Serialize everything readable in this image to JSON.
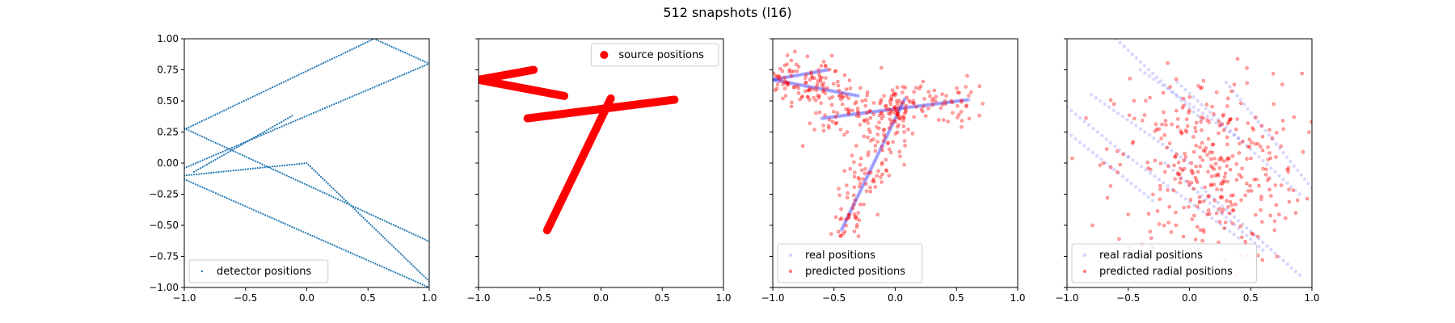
{
  "figure": {
    "title": "512 snapshots (l16)"
  },
  "colors": {
    "detector": "#1f77b4",
    "source": "#ff0000",
    "real": "#0000ff",
    "predicted": "#ff0000"
  },
  "chart_data": [
    {
      "type": "scatter",
      "xlim": [
        -1,
        1
      ],
      "ylim": [
        -1,
        1
      ],
      "xticks": [
        "−1.0",
        "−0.5",
        "0.0",
        "0.5",
        "1.0"
      ],
      "yticks": [
        "1.00",
        "0.75",
        "0.50",
        "0.25",
        "0.00",
        "−0.25",
        "−0.50",
        "−0.75",
        "−1.00"
      ],
      "legend": {
        "placement": "lower-left",
        "entries": [
          "detector positions"
        ]
      },
      "series": [
        {
          "name": "detector positions",
          "style": "dots",
          "segments": [
            [
              [
                -1.0,
                0.27
              ],
              [
                0.55,
                1.0
              ],
              [
                1.0,
                0.8
              ]
            ],
            [
              [
                -1.0,
                -0.04
              ],
              [
                1.0,
                0.8
              ]
            ],
            [
              [
                -1.0,
                0.28
              ],
              [
                1.0,
                -0.63
              ]
            ],
            [
              [
                -1.0,
                -0.1
              ],
              [
                0.0,
                0.0
              ],
              [
                1.0,
                -0.95
              ]
            ],
            [
              [
                -1.0,
                -0.13
              ],
              [
                1.0,
                -1.0
              ]
            ],
            [
              [
                -0.92,
                -0.07
              ],
              [
                -0.12,
                0.38
              ]
            ]
          ]
        }
      ]
    },
    {
      "type": "scatter",
      "xlim": [
        -1,
        1
      ],
      "ylim": [
        -1,
        1
      ],
      "xticks": [
        "−1.0",
        "−0.5",
        "0.0",
        "0.5",
        "1.0"
      ],
      "legend": {
        "placement": "top-right",
        "entries": [
          "source positions"
        ]
      },
      "series": [
        {
          "name": "source positions",
          "style": "thick",
          "segments": [
            [
              [
                -1.0,
                0.67
              ],
              [
                -0.55,
                0.75
              ]
            ],
            [
              [
                -1.0,
                0.67
              ],
              [
                -0.3,
                0.54
              ]
            ],
            [
              [
                -0.6,
                0.36
              ],
              [
                0.6,
                0.51
              ]
            ],
            [
              [
                -0.44,
                -0.54
              ],
              [
                0.08,
                0.52
              ]
            ]
          ]
        }
      ]
    },
    {
      "type": "scatter",
      "xlim": [
        -1,
        1
      ],
      "ylim": [
        -1,
        1
      ],
      "xticks": [
        "−1.0",
        "−0.5",
        "0.0",
        "0.5",
        "1.0"
      ],
      "legend": {
        "placement": "lower-left",
        "entries": [
          "real positions",
          "predicted positions"
        ]
      },
      "series": [
        {
          "name": "real positions",
          "style": "trail",
          "segments": [
            [
              [
                -1.0,
                0.67
              ],
              [
                -0.55,
                0.75
              ]
            ],
            [
              [
                -1.0,
                0.67
              ],
              [
                -0.3,
                0.54
              ]
            ],
            [
              [
                -0.6,
                0.36
              ],
              [
                0.6,
                0.51
              ]
            ],
            [
              [
                -0.44,
                -0.54
              ],
              [
                0.08,
                0.52
              ]
            ]
          ]
        },
        {
          "name": "predicted positions",
          "style": "scatter",
          "n": 420,
          "scatter_about": "real positions",
          "spread": 0.09
        }
      ]
    },
    {
      "type": "scatter",
      "xlim": [
        -1,
        1
      ],
      "ylim": [
        -1,
        1
      ],
      "xticks": [
        "−1.0",
        "−0.5",
        "0.0",
        "0.5",
        "1.0"
      ],
      "legend": {
        "placement": "lower-left",
        "entries": [
          "real radial positions",
          "predicted radial positions"
        ]
      },
      "series": [
        {
          "name": "real radial positions",
          "style": "faint-trails",
          "segments": [
            [
              [
                -1.0,
                0.45
              ],
              [
                -0.5,
                0.05
              ]
            ],
            [
              [
                -1.0,
                0.25
              ],
              [
                -0.3,
                -0.3
              ]
            ],
            [
              [
                -0.6,
                1.0
              ],
              [
                0.1,
                0.35
              ]
            ],
            [
              [
                -0.4,
                0.75
              ],
              [
                0.4,
                0.2
              ]
            ],
            [
              [
                -0.1,
                0.65
              ],
              [
                0.9,
                -0.25
              ]
            ],
            [
              [
                -0.5,
                0.05
              ],
              [
                0.4,
                -0.6
              ]
            ],
            [
              [
                -0.2,
                0.0
              ],
              [
                0.6,
                -0.7
              ]
            ],
            [
              [
                0.1,
                -0.2
              ],
              [
                0.9,
                -0.9
              ]
            ],
            [
              [
                -0.8,
                0.55
              ],
              [
                0.0,
                0.0
              ]
            ],
            [
              [
                0.3,
                0.65
              ],
              [
                1.0,
                -0.2
              ]
            ]
          ]
        },
        {
          "name": "predicted radial positions",
          "style": "scatter",
          "n": 360,
          "center": [
            0.15,
            -0.05
          ],
          "spread": 0.38
        }
      ]
    }
  ]
}
